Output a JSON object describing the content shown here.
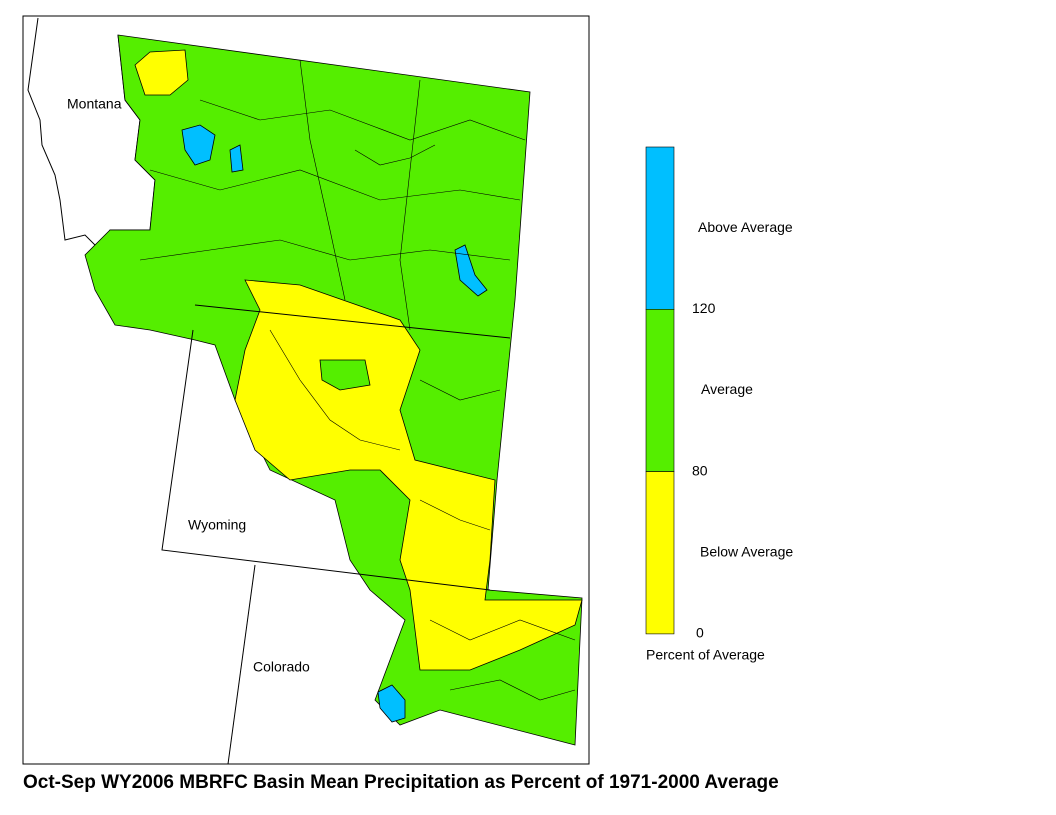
{
  "map": {
    "title": "Oct-Sep WY2006 MBRFC Basin Mean Precipitation as Percent of 1971-2000 Average",
    "state_labels": [
      "Montana",
      "Wyoming",
      "Colorado"
    ]
  },
  "legend": {
    "classes": [
      {
        "label": "Above Average",
        "color": "#00bfff"
      },
      {
        "label": "Average",
        "color": "#55ee00"
      },
      {
        "label": "Below Average",
        "color": "#ffff00"
      }
    ],
    "ticks": [
      120,
      80,
      0
    ],
    "caption": "Percent of Average"
  }
}
